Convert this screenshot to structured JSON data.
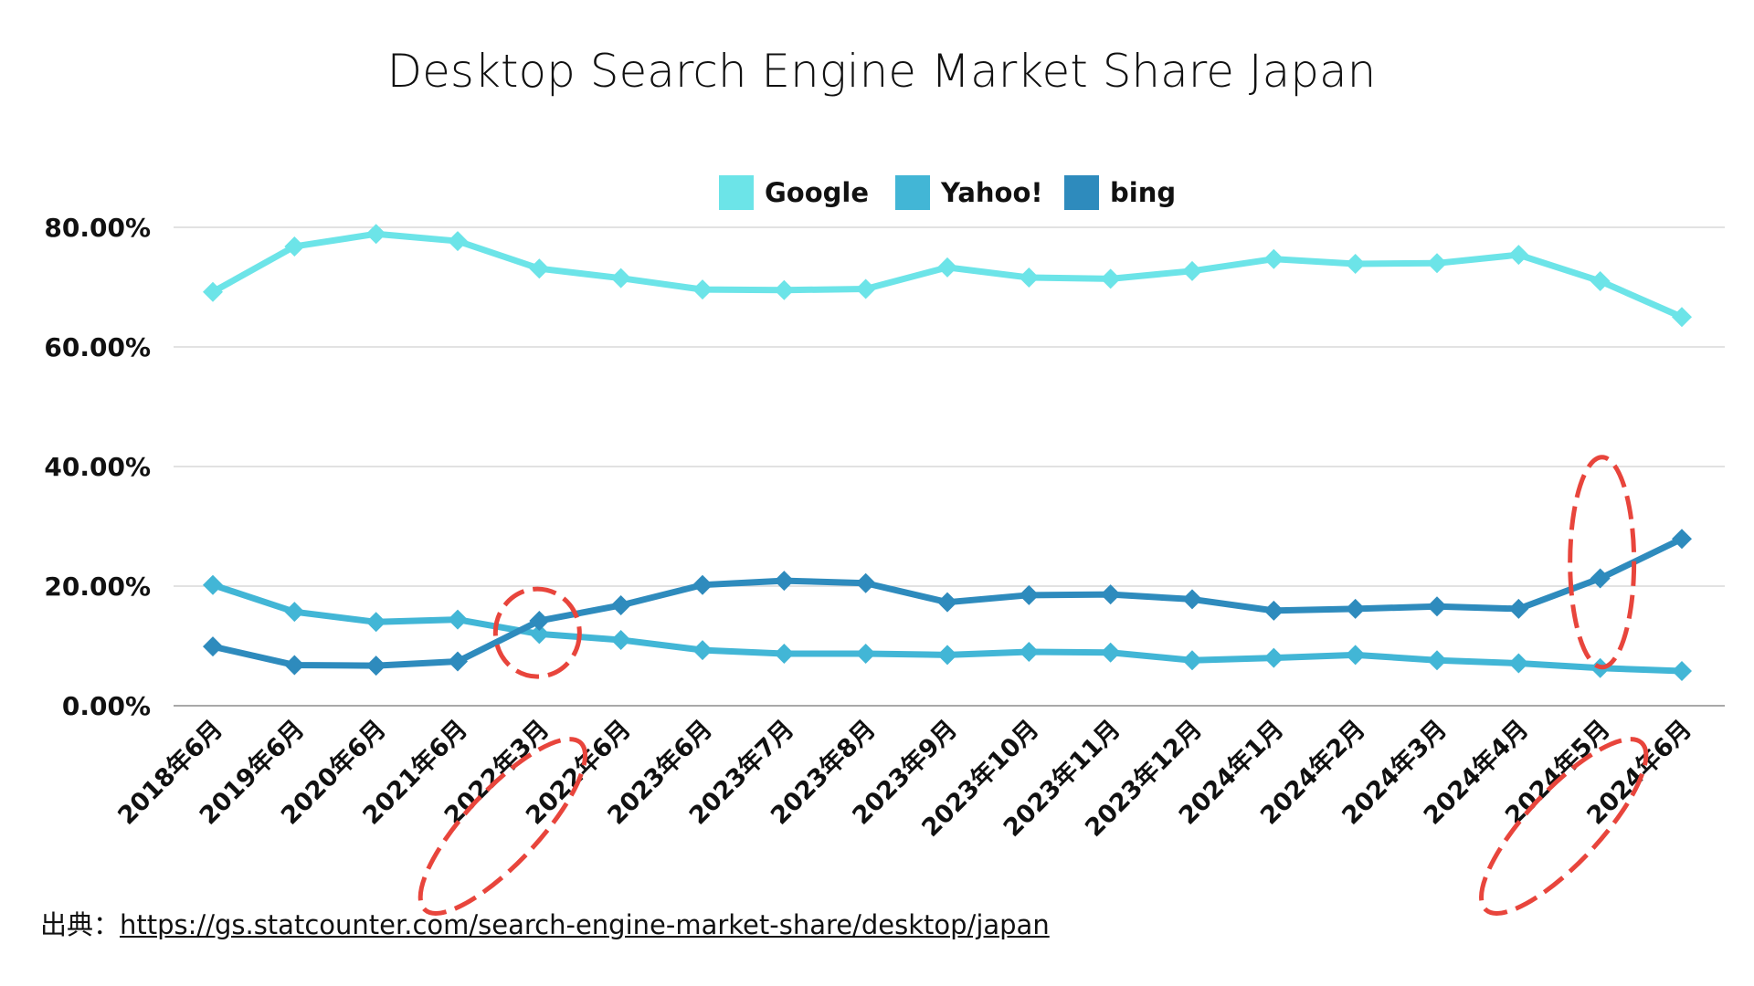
{
  "chart_data": {
    "type": "line",
    "title": "Desktop Search Engine Market Share Japan",
    "xlabel": "",
    "ylabel": "",
    "ylim": [
      0,
      80
    ],
    "yticks": [
      "0.00%",
      "20.00%",
      "40.00%",
      "60.00%",
      "80.00%"
    ],
    "ytick_values": [
      0,
      20,
      40,
      60,
      80
    ],
    "grid": true,
    "legend_position": "top-center",
    "categories": [
      "2018年6月",
      "2019年6月",
      "2020年6月",
      "2021年6月",
      "2022年3月",
      "2022年6月",
      "2023年6月",
      "2023年7月",
      "2023年8月",
      "2023年9月",
      "2023年10月",
      "2023年11月",
      "2023年12月",
      "2024年1月",
      "2024年2月",
      "2024年3月",
      "2024年4月",
      "2024年5月",
      "2024年6月"
    ],
    "series": [
      {
        "name": "Google",
        "color": "#6ce4e8",
        "values": [
          69.2,
          76.8,
          78.9,
          77.7,
          73.1,
          71.5,
          69.6,
          69.5,
          69.7,
          73.3,
          71.6,
          71.4,
          72.7,
          74.7,
          73.9,
          74.0,
          75.4,
          71.0,
          65.0
        ]
      },
      {
        "name": "Yahoo!",
        "color": "#42b6d6",
        "values": [
          20.2,
          15.7,
          14.0,
          14.4,
          12.0,
          11.0,
          9.3,
          8.7,
          8.7,
          8.5,
          9.0,
          8.9,
          7.6,
          8.0,
          8.5,
          7.6,
          7.1,
          6.3,
          5.8
        ]
      },
      {
        "name": "bing",
        "color": "#2e8bbd",
        "values": [
          9.9,
          6.8,
          6.7,
          7.4,
          14.2,
          16.8,
          20.2,
          20.9,
          20.5,
          17.3,
          18.5,
          18.6,
          17.8,
          15.9,
          16.2,
          16.6,
          16.2,
          21.3,
          27.9
        ]
      }
    ],
    "annotations": [
      {
        "type": "dashed-ellipse",
        "target": "data-point",
        "category": "2022年3月",
        "color": "#e8453c"
      },
      {
        "type": "dashed-ellipse",
        "target": "x-label",
        "category": "2022年3月",
        "color": "#e8453c"
      },
      {
        "type": "dashed-ellipse",
        "target": "data-point",
        "category": "2024年5月",
        "color": "#e8453c"
      },
      {
        "type": "dashed-ellipse",
        "target": "x-label",
        "category": "2024年5月",
        "color": "#e8453c"
      }
    ]
  },
  "source": {
    "prefix": "出典：",
    "link_text": "https://gs.statcounter.com/search-engine-market-share/desktop/japan"
  }
}
